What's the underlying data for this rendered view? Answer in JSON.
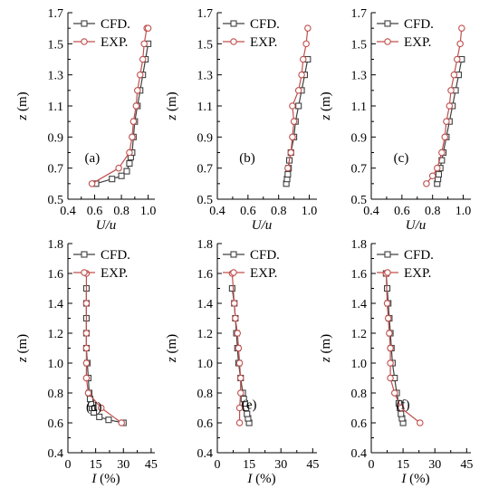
{
  "colors": {
    "cfd": "#404040",
    "exp": "#c0504d",
    "axis": "#000000"
  },
  "chart_data": [
    {
      "id": "a",
      "type": "line",
      "panel_label": "(a)",
      "xlabel_var": "U/u",
      "xlabel_unit": "",
      "ylabel_var": "z",
      "ylabel_unit": " (m)",
      "xlim": [
        0.4,
        1.05
      ],
      "ylim": [
        0.5,
        1.7
      ],
      "xticks": [
        "0.4",
        "0.6",
        "0.8",
        "1.0"
      ],
      "xtick_values": [
        0.4,
        0.6,
        0.8,
        1.0
      ],
      "yticks": [
        "0.5",
        "0.7",
        "0.9",
        "1.1",
        "1.3",
        "1.5",
        "1.7"
      ],
      "ytick_values": [
        0.5,
        0.7,
        0.9,
        1.1,
        1.3,
        1.5,
        1.7
      ],
      "legend": [
        "CFD.",
        "EXP."
      ],
      "legend_position": "top-right",
      "series": [
        {
          "name": "CFD.",
          "marker": "square",
          "x": [
            0.61,
            0.73,
            0.8,
            0.84,
            0.86,
            0.87,
            0.88,
            0.89,
            0.9,
            0.92,
            0.94,
            0.96,
            0.98,
            1.0
          ],
          "y": [
            0.6,
            0.63,
            0.65,
            0.68,
            0.73,
            0.77,
            0.8,
            0.9,
            1.0,
            1.1,
            1.2,
            1.3,
            1.4,
            1.5
          ]
        },
        {
          "name": "EXP.",
          "marker": "circle",
          "x": [
            0.58,
            0.78,
            0.86,
            0.88,
            0.89,
            0.91,
            0.92,
            0.94,
            0.96,
            0.97,
            0.99,
            1.0
          ],
          "y": [
            0.6,
            0.7,
            0.8,
            0.9,
            1.0,
            1.1,
            1.2,
            1.3,
            1.4,
            1.5,
            1.6,
            1.6
          ]
        }
      ]
    },
    {
      "id": "b",
      "type": "line",
      "panel_label": "(b)",
      "xlabel_var": "U/u",
      "xlabel_unit": "",
      "ylabel_var": "z",
      "ylabel_unit": " (m)",
      "xlim": [
        0.4,
        1.05
      ],
      "ylim": [
        0.5,
        1.7
      ],
      "xticks": [
        "0.4",
        "0.6",
        "0.8",
        "1.0"
      ],
      "xtick_values": [
        0.4,
        0.6,
        0.8,
        1.0
      ],
      "yticks": [
        "0.5",
        "0.7",
        "0.9",
        "1.1",
        "1.3",
        "1.5",
        "1.7"
      ],
      "ytick_values": [
        0.5,
        0.7,
        0.9,
        1.1,
        1.3,
        1.5,
        1.7
      ],
      "legend": [
        "CFD.",
        "EXP."
      ],
      "legend_position": "top-right",
      "series": [
        {
          "name": "CFD.",
          "marker": "square",
          "x": [
            0.85,
            0.855,
            0.86,
            0.865,
            0.87,
            0.88,
            0.9,
            0.91,
            0.93,
            0.95,
            0.97,
            0.99
          ],
          "y": [
            0.6,
            0.63,
            0.66,
            0.7,
            0.75,
            0.8,
            0.9,
            1.0,
            1.1,
            1.2,
            1.3,
            1.4
          ]
        },
        {
          "name": "EXP.",
          "marker": "circle",
          "x": [
            0.86,
            0.88,
            0.89,
            0.9,
            0.89,
            0.93,
            0.95,
            0.96,
            0.98,
            0.99
          ],
          "y": [
            0.7,
            0.8,
            0.9,
            1.0,
            1.1,
            1.2,
            1.3,
            1.4,
            1.5,
            1.6
          ]
        }
      ]
    },
    {
      "id": "c",
      "type": "line",
      "panel_label": "(c)",
      "xlabel_var": "U/u",
      "xlabel_unit": "",
      "ylabel_var": "z",
      "ylabel_unit": " (m)",
      "xlim": [
        0.4,
        1.05
      ],
      "ylim": [
        0.5,
        1.7
      ],
      "xticks": [
        "0.4",
        "0.6",
        "0.8",
        "1.0"
      ],
      "xtick_values": [
        0.4,
        0.6,
        0.8,
        1.0
      ],
      "yticks": [
        "0.5",
        "0.7",
        "0.9",
        "1.1",
        "1.3",
        "1.5",
        "1.7"
      ],
      "ytick_values": [
        0.5,
        0.7,
        0.9,
        1.1,
        1.3,
        1.5,
        1.7
      ],
      "legend": [
        "CFD.",
        "EXP."
      ],
      "legend_position": "top-right",
      "series": [
        {
          "name": "CFD.",
          "marker": "square",
          "x": [
            0.83,
            0.835,
            0.84,
            0.85,
            0.86,
            0.87,
            0.89,
            0.91,
            0.93,
            0.95,
            0.97,
            0.99
          ],
          "y": [
            0.6,
            0.63,
            0.66,
            0.7,
            0.75,
            0.8,
            0.9,
            1.0,
            1.1,
            1.2,
            1.3,
            1.4
          ]
        },
        {
          "name": "EXP.",
          "marker": "circle",
          "x": [
            0.76,
            0.8,
            0.83,
            0.86,
            0.88,
            0.89,
            0.91,
            0.92,
            0.94,
            0.96,
            0.98,
            0.99
          ],
          "y": [
            0.6,
            0.65,
            0.7,
            0.8,
            0.9,
            1.0,
            1.1,
            1.2,
            1.3,
            1.4,
            1.5,
            1.6
          ]
        }
      ]
    },
    {
      "id": "d",
      "type": "line",
      "panel_label": "(d)",
      "xlabel_var": "I",
      "xlabel_unit": " (%)",
      "ylabel_var": "z",
      "ylabel_unit": " (m)",
      "xlim": [
        0,
        47
      ],
      "ylim": [
        0.4,
        1.8
      ],
      "xticks": [
        "0",
        "15",
        "30",
        "45"
      ],
      "xtick_values": [
        0,
        15,
        30,
        45
      ],
      "yticks": [
        "0.4",
        "0.6",
        "0.8",
        "1.0",
        "1.2",
        "1.4",
        "1.6",
        "1.8"
      ],
      "ytick_values": [
        0.4,
        0.6,
        0.8,
        1.0,
        1.2,
        1.4,
        1.6,
        1.8
      ],
      "legend": [
        "CFD.",
        "EXP."
      ],
      "legend_position": "top-right",
      "series": [
        {
          "name": "CFD.",
          "marker": "square",
          "x": [
            30,
            22,
            17,
            14,
            13,
            12.5,
            12,
            11.5,
            11,
            10.5,
            10,
            10,
            10,
            10,
            10
          ],
          "y": [
            0.6,
            0.62,
            0.64,
            0.67,
            0.7,
            0.73,
            0.76,
            0.8,
            0.9,
            1.0,
            1.1,
            1.2,
            1.3,
            1.4,
            1.5
          ]
        },
        {
          "name": "EXP.",
          "marker": "circle",
          "x": [
            29,
            18,
            11,
            10,
            10,
            10,
            10,
            10,
            10
          ],
          "y": [
            0.6,
            0.7,
            0.8,
            0.9,
            1.0,
            1.1,
            1.2,
            1.4,
            1.6
          ]
        }
      ]
    },
    {
      "id": "e",
      "type": "line",
      "panel_label": "(e)",
      "xlabel_var": "I",
      "xlabel_unit": " (%)",
      "ylabel_var": "z",
      "ylabel_unit": " (m)",
      "xlim": [
        0,
        47
      ],
      "ylim": [
        0.4,
        1.8
      ],
      "xticks": [
        "0",
        "15",
        "30",
        "45"
      ],
      "xtick_values": [
        0,
        15,
        30,
        45
      ],
      "yticks": [
        "0.4",
        "0.6",
        "0.8",
        "1.0",
        "1.2",
        "1.4",
        "1.6",
        "1.8"
      ],
      "ytick_values": [
        0.4,
        0.6,
        0.8,
        1.0,
        1.2,
        1.4,
        1.6,
        1.8
      ],
      "legend": [
        "CFD.",
        "EXP."
      ],
      "legend_position": "top-right",
      "series": [
        {
          "name": "CFD.",
          "marker": "square",
          "x": [
            15,
            14.5,
            14,
            13.5,
            13,
            12.5,
            12,
            11,
            10,
            9.5,
            9,
            8.5,
            8,
            7
          ],
          "y": [
            0.6,
            0.63,
            0.66,
            0.7,
            0.73,
            0.76,
            0.8,
            0.9,
            1.0,
            1.1,
            1.2,
            1.3,
            1.4,
            1.5
          ]
        },
        {
          "name": "EXP.",
          "marker": "circle",
          "x": [
            10.5,
            10.5,
            11,
            11,
            10.5,
            10,
            9.5,
            8.5,
            8,
            7
          ],
          "y": [
            0.6,
            0.7,
            0.8,
            0.9,
            1.0,
            1.1,
            1.2,
            1.3,
            1.4,
            1.6
          ]
        }
      ]
    },
    {
      "id": "f",
      "type": "line",
      "panel_label": "(f)",
      "xlabel_var": "I",
      "xlabel_unit": " (%)",
      "ylabel_var": "z",
      "ylabel_unit": " (m)",
      "xlim": [
        0,
        47
      ],
      "ylim": [
        0.4,
        1.8
      ],
      "xticks": [
        "0",
        "15",
        "30",
        "45"
      ],
      "xtick_values": [
        0,
        15,
        30,
        45
      ],
      "yticks": [
        "0.4",
        "0.6",
        "0.8",
        "1.0",
        "1.2",
        "1.4",
        "1.6",
        "1.8"
      ],
      "ytick_values": [
        0.4,
        0.6,
        0.8,
        1.0,
        1.2,
        1.4,
        1.6,
        1.8
      ],
      "legend": [
        "CFD.",
        "EXP."
      ],
      "legend_position": "top-right",
      "series": [
        {
          "name": "CFD.",
          "marker": "square",
          "x": [
            15,
            14.5,
            14,
            13.5,
            13,
            12,
            11,
            10,
            9.5,
            9,
            8.5,
            8,
            7.5,
            7
          ],
          "y": [
            0.6,
            0.63,
            0.66,
            0.7,
            0.73,
            0.8,
            0.9,
            1.0,
            1.1,
            1.2,
            1.3,
            1.4,
            1.5,
            1.6
          ]
        },
        {
          "name": "EXP.",
          "marker": "circle",
          "x": [
            23,
            14,
            11,
            9,
            9,
            9,
            8.5,
            8,
            7.5,
            7
          ],
          "y": [
            0.6,
            0.7,
            0.8,
            0.9,
            1.0,
            1.1,
            1.2,
            1.3,
            1.4,
            1.6
          ]
        }
      ]
    }
  ]
}
